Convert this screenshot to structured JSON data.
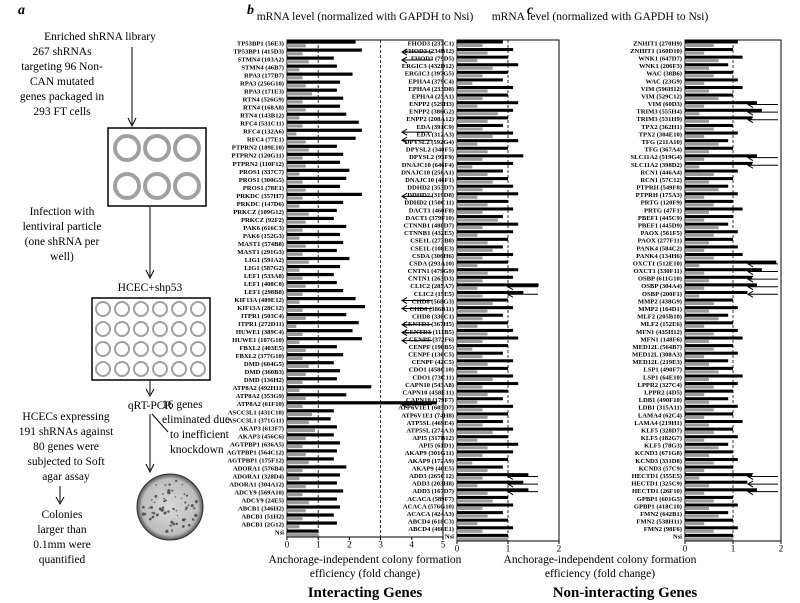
{
  "diagram": {
    "panel": "a",
    "library": [
      "Enriched shRNA library",
      "267 shRNAs",
      "targeting 96 Non-",
      "CAN mutated",
      "genes packaged in",
      "293 FT cells"
    ],
    "infection": [
      "Infection with",
      "lentiviral particle",
      "(one shRNA per",
      "well)"
    ],
    "cells": "HCEC+shp53",
    "assay": "qRT-PCR",
    "soft_agar": [
      "HCECs expressing",
      "191 shRNAs against",
      "80 genes were",
      "subjected to Soft",
      "agar assay"
    ],
    "eliminated": [
      "16 genes",
      "eliminated due",
      "to inefficient",
      "knockdown"
    ],
    "quantified": [
      "Colonies",
      "larger than",
      "0.1mm were",
      "quantified"
    ]
  },
  "chart_data": [
    {
      "type": "bar",
      "panel": "b",
      "title": "mRNA level (normalized with GAPDH  to Nsi)",
      "xlabel": [
        "Anchorage-independent colony formation",
        "efficiency (fold change)"
      ],
      "caption": "Interacting Genes",
      "xlim": [
        0,
        5
      ],
      "xticks": [
        0,
        1,
        2,
        3,
        4,
        5
      ],
      "ref_lines": [
        1,
        3
      ],
      "arrows": [
        1,
        2,
        11,
        12,
        19,
        32,
        33,
        35,
        36,
        37,
        45
      ],
      "categories": [
        "TP53BP1 (56E3)",
        "TP53BP1 (415D3)",
        "STMN4 (103A2)",
        "STMN4 (46B7)",
        "RPA3 (177B7)",
        "RPA3 (256G10)",
        "RPA3 (171E3)",
        "RTN4 (526G9)",
        "RTN4 (168A8)",
        "RTN4 (143B12)",
        "RFC4 (531C11)",
        "RFC4 (132A6)",
        "RFC4 (77E1)",
        "PTPRN2 (189E10)",
        "PTPRN2 (120G11)",
        "PTPRN2 (110F12)",
        "PROS1 (337C7)",
        "PROS1 (300G5)",
        "PROS1 (78E1)",
        "PRKDC (357H7)",
        "PRKDC (147D6)",
        "PRKCZ (109G12)",
        "PRKCZ (92F2)",
        "PAK6 (616C3)",
        "PAK6 (152G3)",
        "MAST1 (574B8)",
        "MAST1 (291G3)",
        "LIG1 (591A2)",
        "LIG1 (587G2)",
        "LEF1 (533A8)",
        "LEF1 (408C8)",
        "LEF1 (298B8)",
        "KIF13A (489E12)",
        "KIF13A (28C12)",
        "ITPR1 (503C4)",
        "ITPR1 (272D11)",
        "HUWE1 (389C4)",
        "HUWE1 (107G10)",
        "FBXL2 (403E5)",
        "FBXL2 (377G10)",
        "DMD (604G5)",
        "DMD (360B3)",
        "DMD (136H2)",
        "ATP8A2 (492H11)",
        "ATP8A2 (353G9)",
        "ATP8A2 (61F10)",
        "ASCC3L1 (431C10)",
        "ASCC3L1 (371G11)",
        "AKAP3 (613F7)",
        "AKAP3 (456C6)",
        "AGTPBP1 (636A5)",
        "AGTPBP1 (564C12)",
        "AGTPBP1 (175F12)",
        "ADORA1 (576B4)",
        "ADORA1 (328D4)",
        "ADORA1 (304A12)",
        "ADCY9 (569A10)",
        "ADCY9 (24E5)",
        "ABCB1 (346H2)",
        "ABCB1 (51H2)",
        "ABCB1 (2G12)",
        "Nsi"
      ],
      "series": [
        {
          "color": "#000000",
          "values": [
            2.2,
            2.4,
            1.5,
            1.6,
            2.1,
            1.7,
            1.6,
            1.8,
            1.7,
            1.9,
            2.3,
            2.4,
            2.2,
            1.6,
            1.8,
            1.7,
            2.0,
            1.9,
            1.7,
            2.4,
            1.8,
            1.6,
            1.5,
            1.9,
            1.7,
            1.8,
            1.6,
            2.0,
            1.7,
            1.5,
            1.6,
            1.8,
            2.2,
            2.5,
            1.9,
            2.3,
            2.1,
            2.4,
            1.6,
            1.8,
            1.5,
            1.7,
            1.6,
            2.7,
            1.9,
            4.8,
            1.5,
            1.4,
            1.6,
            1.5,
            1.7,
            1.6,
            1.5,
            1.9,
            1.7,
            1.6,
            1.8,
            1.6,
            1.7,
            1.5,
            1.6,
            1
          ]
        },
        {
          "color": "#9a9a9a",
          "values": [
            0.6,
            0.5,
            0.7,
            0.4,
            0.5,
            0.6,
            0.8,
            0.5,
            0.6,
            0.4,
            0.5,
            0.3,
            0.6,
            0.7,
            0.5,
            0.6,
            0.4,
            0.5,
            0.6,
            0.5,
            0.4,
            0.7,
            0.6,
            0.5,
            0.4,
            0.6,
            0.5,
            0.7,
            0.4,
            0.5,
            0.6,
            0.5,
            0.4,
            0.5,
            0.6,
            0.3,
            0.5,
            0.4,
            0.6,
            0.5,
            0.7,
            0.6,
            0.5,
            0.4,
            0.6,
            0.5,
            0.8,
            0.7,
            0.9,
            0.6,
            0.5,
            0.6,
            0.7,
            0.5,
            0.4,
            0.6,
            0.5,
            0.7,
            0.6,
            0.5,
            0.4,
            1
          ]
        }
      ]
    },
    {
      "type": "bar",
      "panel": "c",
      "title": "mRNA level (normalized with GAPDH  to Nsi)",
      "xlabel": [
        "Anchorage-independent colony formation",
        "efficiency (fold change)"
      ],
      "caption": "Non-interacting Genes",
      "xlim": [
        0,
        2
      ],
      "xticks": [
        0,
        1,
        2
      ],
      "ref_lines": [
        1
      ],
      "arrows": [
        32,
        33,
        57,
        58,
        59
      ],
      "categories": [
        "FHOD3 (237C1)",
        "FHOD3 (234B12)",
        "FHOD3 (79D5)",
        "ERGIC3 (432D12)",
        "ERGIC3 (397G5)",
        "EPHA4 (379C4)",
        "EPHA4 (233D8)",
        "EPHA4 (25A1)",
        "ENPP2 (529H3)",
        "ENPP2 (386G2)",
        "ENPP2 (208A12)",
        "EDA (391C9)",
        "EDA (312A3)",
        "DPYSL2 (592G4)",
        "DPYSL2 (340F5)",
        "DPYSL2 (95F9)",
        "DNAJC10 (646F4)",
        "DNAJC10 (256A1)",
        "DNAJC10 (46F1)",
        "DDHD2 (353D7)",
        "DDHD2 (319D8)",
        "DDHD2 (150C11)",
        "DACT1 (460F8)",
        "DACT1 (379F10)",
        "CTNNB1 (488D7)",
        "CTNNB1 (432E5)",
        "CSE1L (273B8)",
        "CSE1L (108E3)",
        "CSDA (306H6)",
        "CSDA (293A10)",
        "CNTN1 (479G9)",
        "CNTN1 (263D3)",
        "CLIC2 (285A7)",
        "CLIC2 (15E5)",
        "CHD8 (568G3)",
        "CHD8 (386B11)",
        "CHD8 (336C1)",
        "CENTD3 (367H5)",
        "CENTD3 (111B5)",
        "CENPF (372F6)",
        "CENPF (190B5)",
        "CENPF (136C5)",
        "CENPF (42C5)",
        "CDO1 (458C10)",
        "CDO1 (73C11)",
        "CAPN10 (543A8)",
        "CAPN10 (458E11)",
        "CAPN10 (179F7)",
        "ATP6V1E1 (605D7)",
        "ATP6V1E1 (74H8)",
        "ATP5SL (469E4)",
        "ATP5SL (274A3)",
        "API5 (317B12)",
        "API5 (61D1)",
        "AKAP9 (301G11)",
        "AKAP9 (172A9)",
        "AKAP9 (40E5)",
        "ADD3 (265C12)",
        "ADD3 (203H8)",
        "ADD3 (167D7)",
        "ACACA (589F7)",
        "ACACA (576G10)",
        "ACACA (424A3)",
        "ABCD4 (618C3)",
        "ABCD4 (466E1)",
        "Nsi"
      ],
      "series": [
        {
          "color": "#000000",
          "values": [
            0.9,
            1.1,
            1.0,
            1.2,
            1.0,
            0.9,
            1.1,
            1.0,
            1.2,
            1.1,
            1.0,
            0.9,
            1.1,
            1.2,
            1.0,
            1.3,
            1.1,
            0.9,
            1.0,
            1.1,
            1.2,
            1.0,
            1.1,
            0.9,
            1.2,
            1.1,
            1.0,
            0.9,
            1.1,
            1.0,
            1.2,
            1.1,
            1.6,
            1.3,
            1.0,
            1.1,
            0.9,
            1.0,
            1.1,
            1.2,
            1.0,
            0.9,
            1.1,
            1.0,
            1.1,
            1.2,
            1.0,
            0.9,
            1.1,
            1.0,
            0.9,
            1.1,
            1.0,
            1.2,
            1.1,
            1.0,
            0.9,
            1.4,
            1.3,
            1.4,
            1.0,
            1.1,
            0.9,
            1.0,
            1.1,
            1
          ]
        },
        {
          "color": "#9a9a9a",
          "values": [
            0.5,
            0.6,
            0.4,
            0.7,
            0.5,
            0.3,
            0.6,
            0.5,
            0.4,
            0.8,
            0.6,
            0.5,
            0.7,
            0.4,
            0.6,
            0.5,
            0.3,
            0.6,
            0.7,
            0.5,
            0.4,
            0.6,
            0.5,
            0.8,
            0.5,
            0.4,
            0.6,
            0.7,
            0.5,
            0.4,
            0.6,
            0.5,
            0.4,
            0.5,
            0.7,
            0.6,
            0.5,
            0.4,
            0.6,
            0.5,
            0.3,
            0.5,
            0.6,
            0.4,
            0.7,
            0.5,
            0.6,
            0.4,
            0.5,
            0.6,
            0.5,
            0.7,
            0.4,
            0.6,
            0.5,
            0.3,
            0.6,
            0.5,
            0.4,
            0.6,
            0.7,
            0.5,
            0.6,
            0.4,
            0.5,
            1
          ]
        }
      ]
    },
    {
      "type": "bar",
      "xlim": [
        0,
        2
      ],
      "xticks": [
        0,
        1,
        2
      ],
      "ref_lines": [
        1
      ],
      "arrows": [
        8,
        9,
        10,
        15,
        16,
        29,
        30,
        31,
        32,
        33,
        57,
        58,
        59
      ],
      "categories": [
        "ZNHIT1 (270H9)",
        "ZNHIT1 (160D10)",
        "WNK1 (647D7)",
        "WNK1 (206F3)",
        "WAC (38B6)",
        "WAC (23G9)",
        "VIM (596H12)",
        "VIM (529C12)",
        "VIM (60D3)",
        "TRIM3 (555H4)",
        "TRIM3 (531H9)",
        "TPX2 (362H1)",
        "TPX2 (304E10)",
        "TFG (211A10)",
        "TFG (367A4)",
        "SLC11A2 (519G4)",
        "SLC11A2 (398D2)",
        "RCN1 (446A4)",
        "RCN1 (57C12)",
        "PTPRH (549F8)",
        "PTPRH (175A3)",
        "PRTG (120F9)",
        "PRTG (47F1)",
        "PBEF1 (445C9)",
        "PBEF1 (445D9)",
        "PAOX (561F5)",
        "PAOX (277F11)",
        "PANK4 (584C2)",
        "PANK4 (134H6)",
        "OXCT1 (512E10)",
        "OXCT1 (330F11)",
        "OSBP (611G10)",
        "OSBP (304A4)",
        "OSBP (200F1)",
        "MMP2 (438G9)",
        "MMP2 (164D1)",
        "MLF2 (205B10)",
        "MLF2 (152E6)",
        "MFN1 (435H12)",
        "MFN1 (148F6)",
        "MED12L (564B7)",
        "MED12L (308A3)",
        "MED12L (219E3)",
        "LSP1 (490F7)",
        "LSP1 (64E10)",
        "LPPR2 (327C4)",
        "LPPR2 (4D5)",
        "LDB1 (490F10)",
        "LDB1 (315A11)",
        "LAMA4 (62C4)",
        "LAMA4 (219H1)",
        "KLF5 (328D7)",
        "KLF5 (182G7)",
        "KLF5 (78G3)",
        "KCND3 (671G8)",
        "KCND3 (331D8)",
        "KCND3 (57C9)",
        "HECTD1 (355E5)",
        "HECTD1 (325C9)",
        "HECTD1 (26F10)",
        "GPBP1 (601G5)",
        "GPBP1 (418C10)",
        "FMN2 (642B1)",
        "FMN2 (538H11)",
        "FMN2 (98F6)",
        "Nsi"
      ],
      "series": [
        {
          "color": "#000000",
          "values": [
            1.1,
            1.0,
            1.2,
            0.9,
            1.0,
            1.1,
            1.2,
            1.0,
            1.5,
            1.6,
            1.4,
            1.0,
            1.1,
            0.9,
            1.0,
            1.5,
            1.4,
            1.1,
            1.0,
            0.9,
            1.1,
            1.0,
            1.2,
            1.0,
            0.9,
            1.1,
            1.0,
            1.1,
            1.2,
            1.9,
            1.6,
            1.4,
            1.5,
            1.3,
            1.0,
            1.1,
            0.9,
            1.0,
            1.1,
            1.2,
            1.0,
            1.1,
            0.9,
            1.0,
            1.2,
            1.1,
            1.0,
            0.9,
            1.1,
            1.0,
            1.2,
            1.0,
            1.1,
            0.9,
            1.0,
            1.1,
            1.0,
            1.4,
            1.3,
            1.5,
            1.0,
            1.1,
            0.9,
            1.0,
            1.1,
            1
          ]
        },
        {
          "color": "#9a9a9a",
          "values": [
            0.6,
            0.4,
            0.7,
            0.5,
            0.6,
            0.4,
            0.5,
            0.7,
            0.4,
            0.3,
            0.5,
            0.6,
            0.4,
            0.7,
            0.5,
            0.4,
            0.3,
            0.6,
            0.5,
            0.7,
            0.4,
            0.6,
            0.5,
            0.4,
            0.7,
            0.6,
            0.5,
            0.4,
            0.6,
            0.3,
            0.4,
            0.5,
            0.4,
            0.3,
            0.6,
            0.5,
            0.7,
            0.4,
            0.6,
            0.5,
            0.6,
            0.4,
            0.5,
            0.7,
            0.5,
            0.6,
            0.4,
            0.5,
            0.6,
            0.4,
            0.5,
            0.6,
            0.4,
            0.7,
            0.5,
            0.6,
            0.4,
            0.3,
            0.5,
            0.4,
            0.6,
            0.5,
            0.7,
            0.4,
            0.6,
            1
          ]
        }
      ]
    }
  ]
}
